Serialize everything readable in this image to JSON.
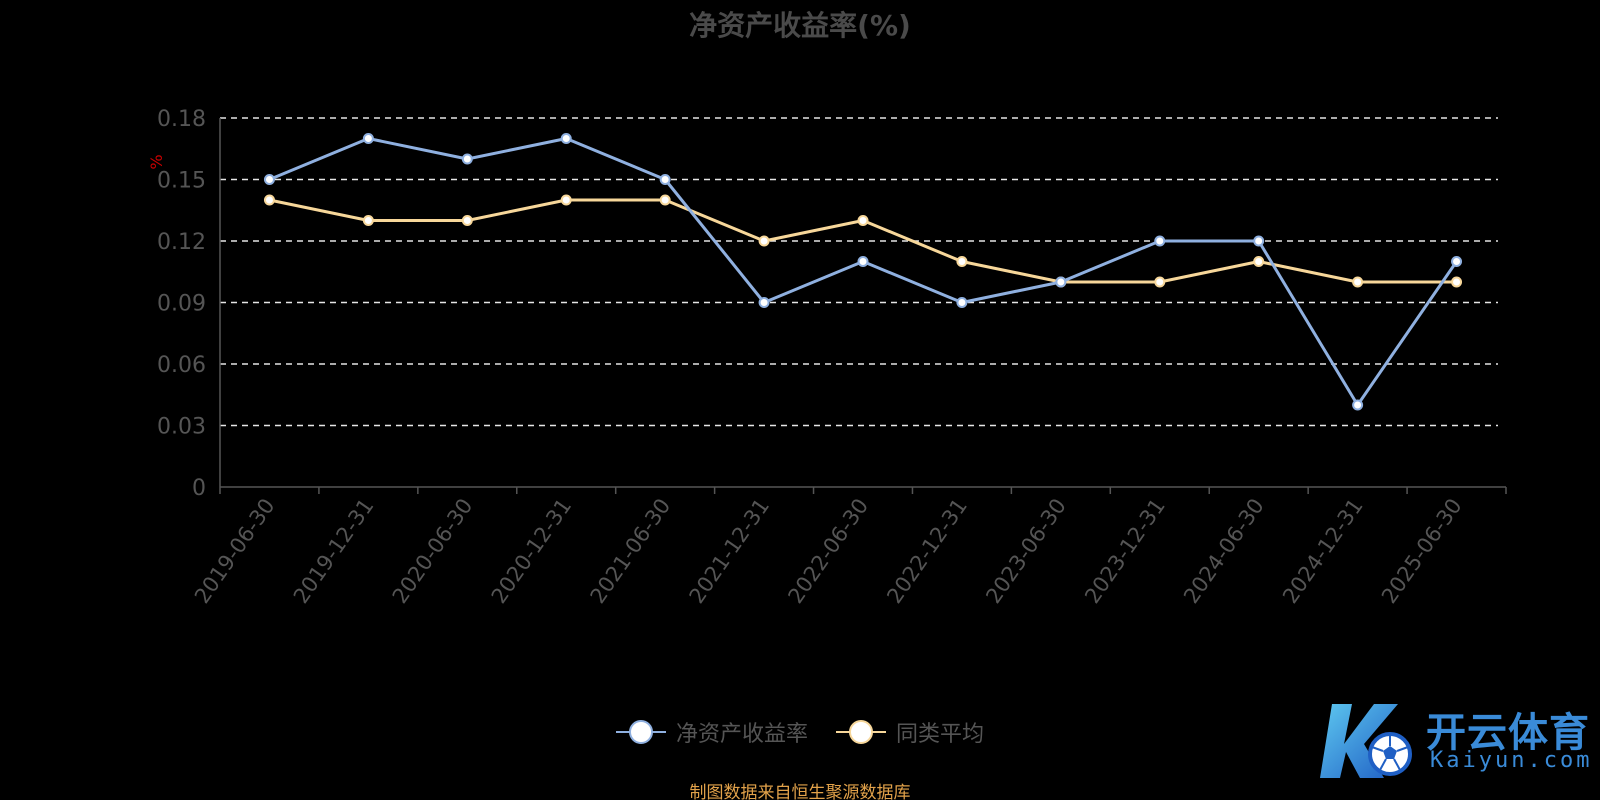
{
  "chart_data": {
    "type": "line",
    "title": "净资产收益率(%)",
    "ylabel": "%",
    "xlabel": "",
    "categories": [
      "2019-06-30",
      "2019-12-31",
      "2020-06-30",
      "2020-12-31",
      "2021-06-30",
      "2021-12-31",
      "2022-06-30",
      "2022-12-31",
      "2023-06-30",
      "2023-12-31",
      "2024-06-30",
      "2024-12-31",
      "2025-06-30"
    ],
    "y_ticks": [
      "0",
      "0.03",
      "0.06",
      "0.09",
      "0.12",
      "0.15",
      "0.18"
    ],
    "ylim": [
      0,
      0.18
    ],
    "grid": true,
    "legend_position": "bottom",
    "series": [
      {
        "name": "净资产收益率",
        "color": "#8fb0e0",
        "values": [
          0.15,
          0.17,
          0.16,
          0.17,
          0.15,
          0.09,
          0.11,
          0.09,
          0.1,
          0.12,
          0.12,
          0.04,
          0.11
        ]
      },
      {
        "name": "同类平均",
        "color": "#f7d79a",
        "values": [
          0.14,
          0.13,
          0.13,
          0.14,
          0.14,
          0.12,
          0.13,
          0.11,
          0.1,
          0.1,
          0.11,
          0.1,
          0.1
        ]
      }
    ]
  },
  "footer": {
    "source": "制图数据来自恒生聚源数据库"
  },
  "watermark": {
    "brand_cn": "开云体育",
    "brand_en": "Kaiyun.com"
  },
  "colors": {
    "axis": "#555555",
    "grid": "#e6e6e6",
    "ylabel": "#cc0000"
  }
}
